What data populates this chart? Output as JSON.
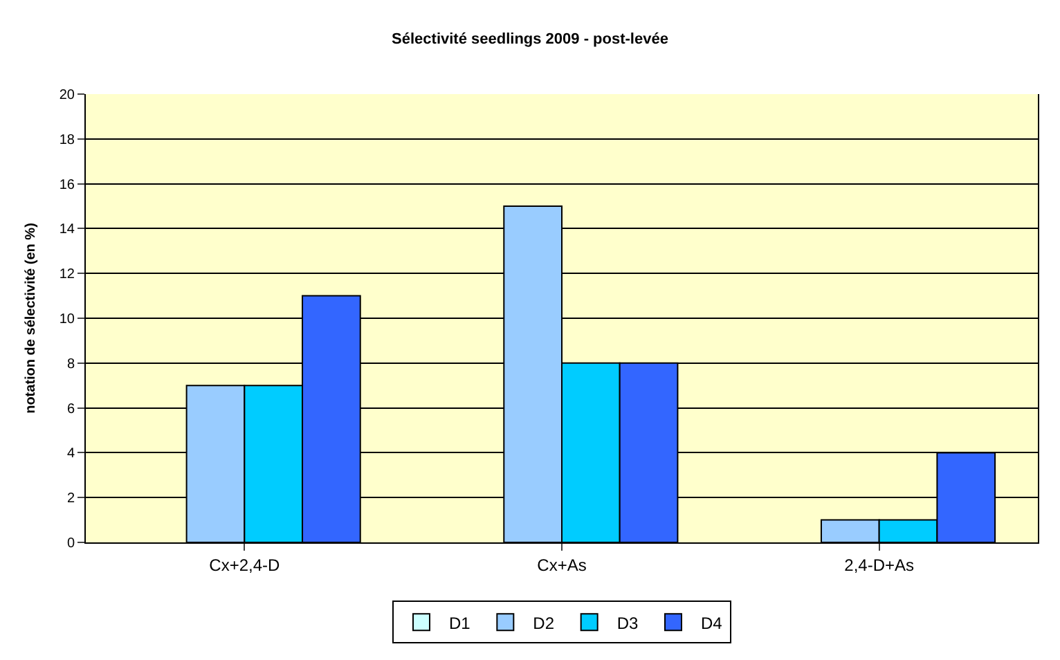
{
  "chart_data": {
    "type": "bar",
    "title": "Sélectivité seedlings 2009 - post-levée",
    "ylabel": "notation de sélectivité (en %)",
    "categories": [
      "Cx+2,4-D",
      "Cx+As",
      "2,4-D+As"
    ],
    "series": [
      {
        "name": "D1",
        "color": "#ccffff",
        "values": [
          null,
          null,
          null
        ]
      },
      {
        "name": "D2",
        "color": "#99ccff",
        "values": [
          7,
          15,
          1
        ]
      },
      {
        "name": "D3",
        "color": "#00ccff",
        "values": [
          7,
          8,
          1
        ]
      },
      {
        "name": "D4",
        "color": "#3366ff",
        "values": [
          11,
          8,
          4
        ]
      }
    ],
    "ylim": [
      0,
      20
    ],
    "yticks": [
      0,
      2,
      4,
      6,
      8,
      10,
      12,
      14,
      16,
      18,
      20
    ],
    "grid": "y",
    "legend": "bottom"
  }
}
